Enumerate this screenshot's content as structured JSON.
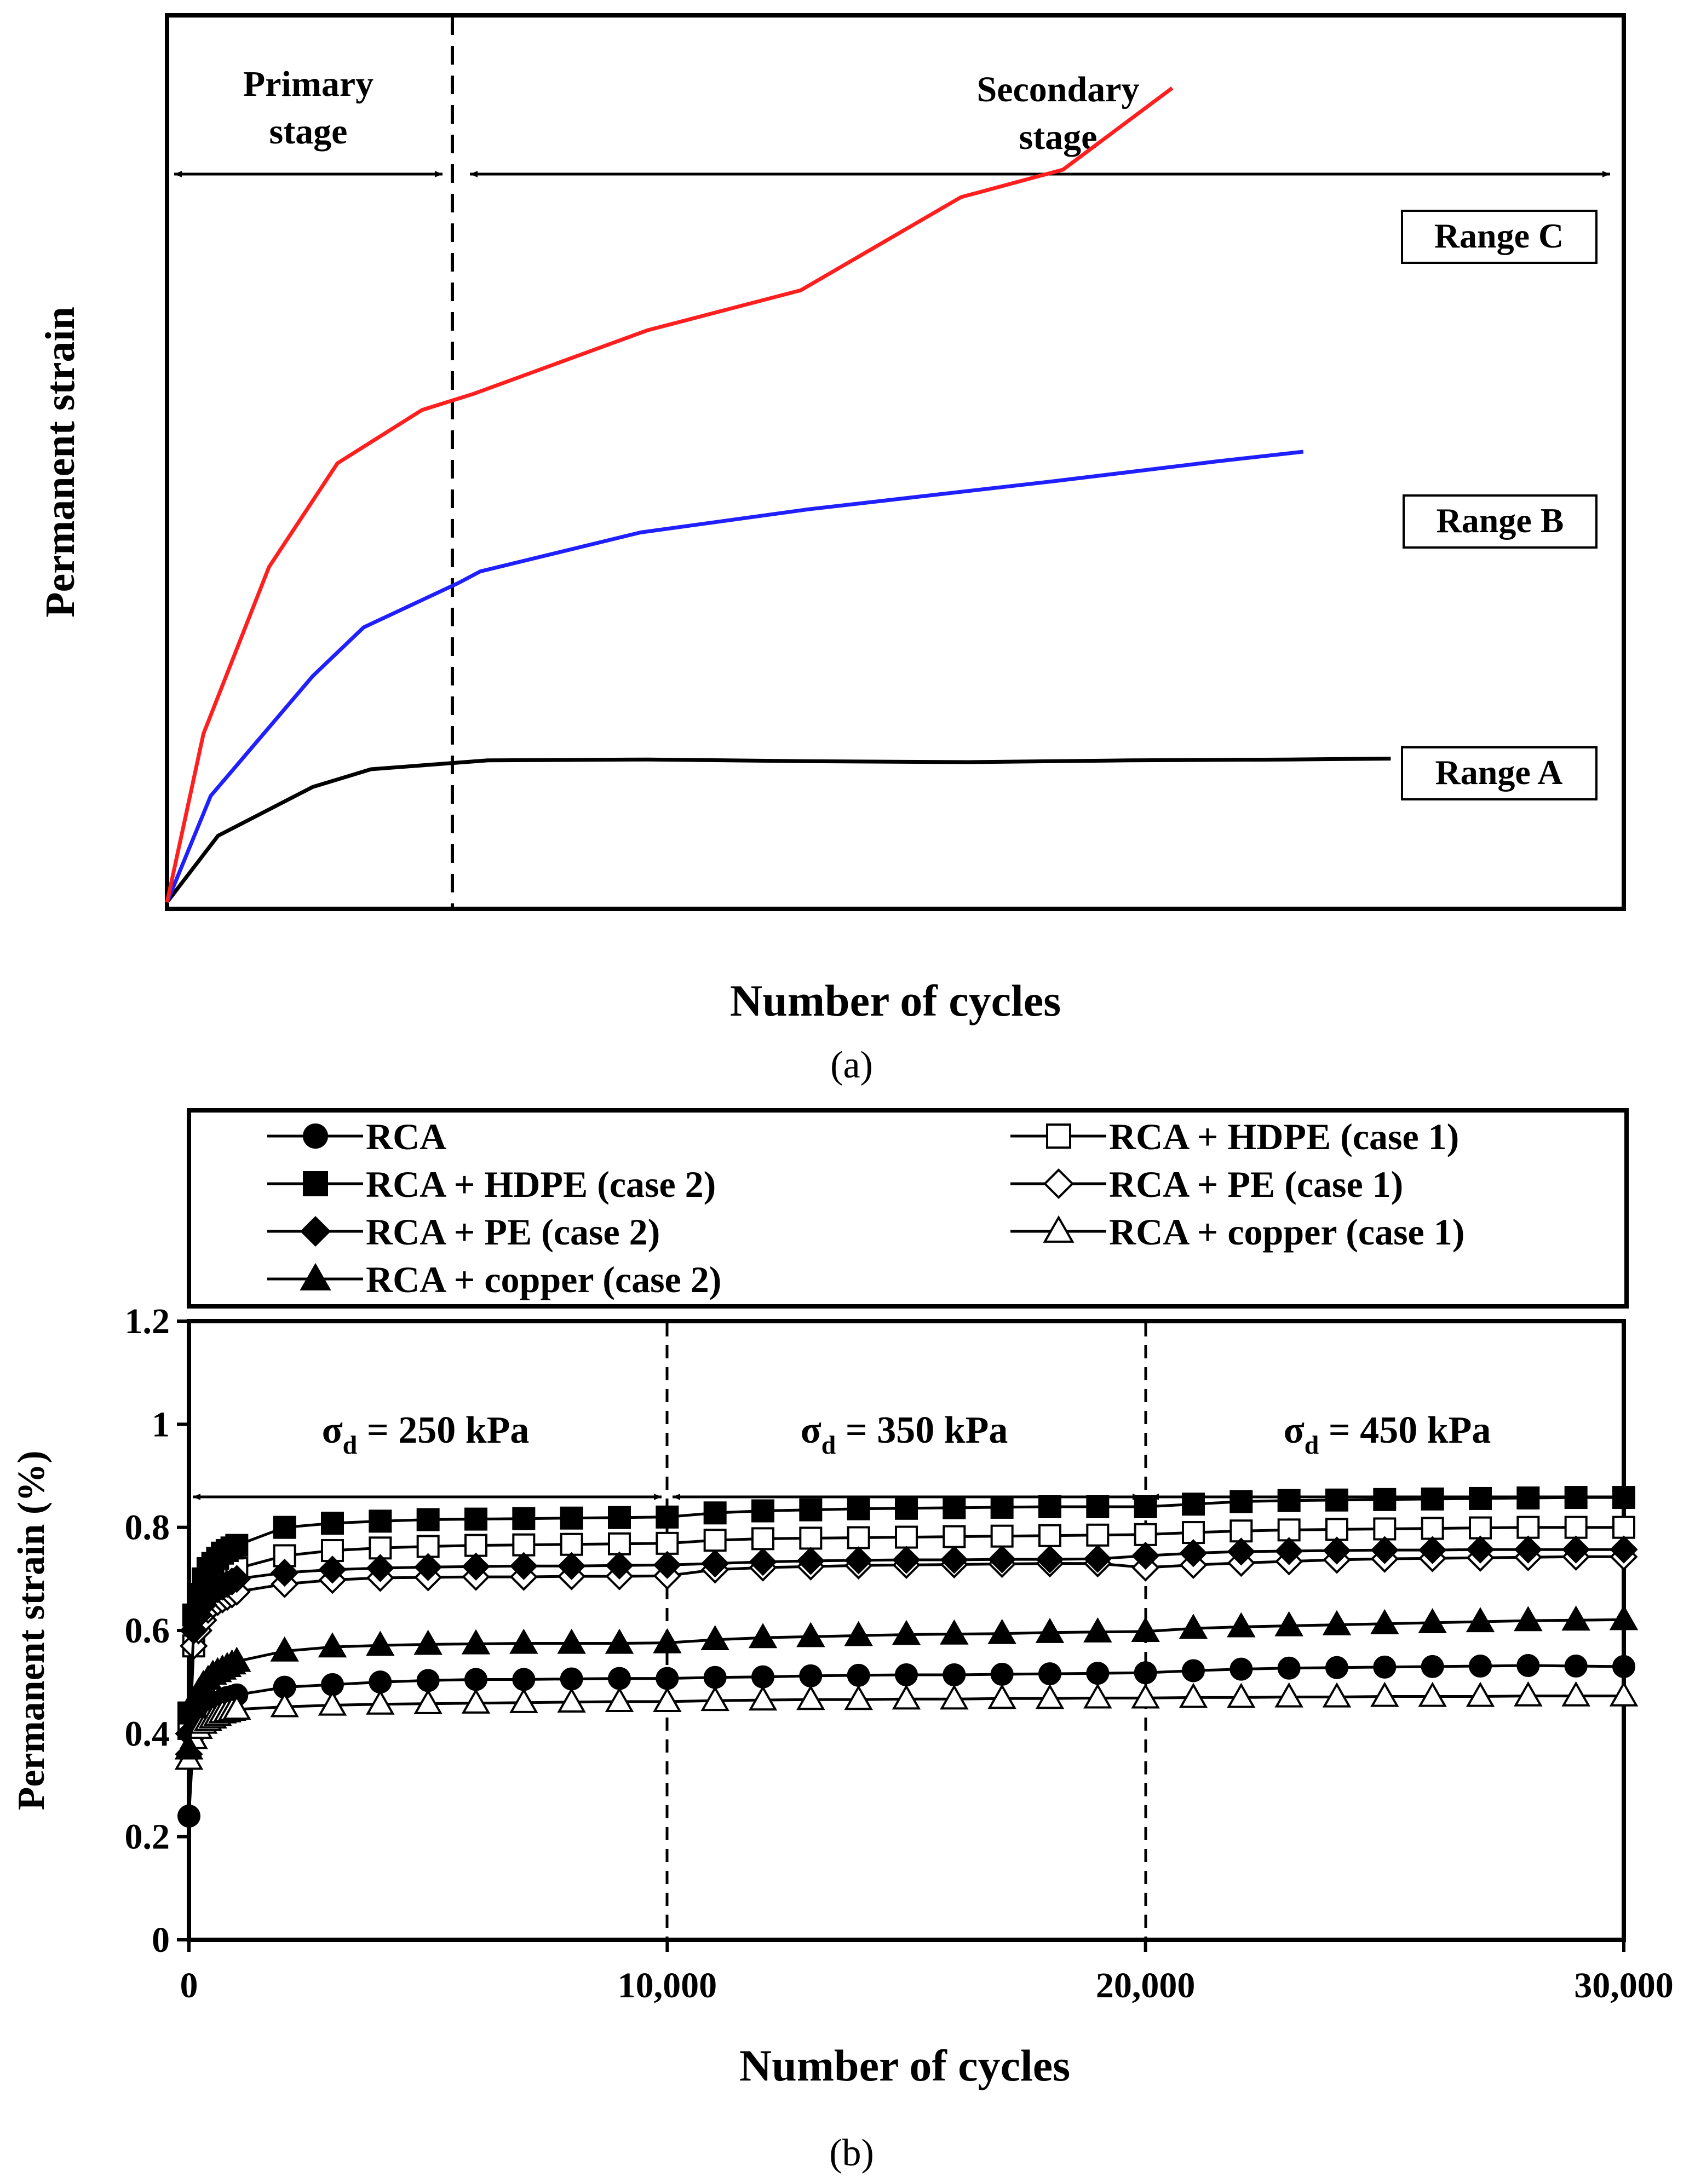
{
  "colors": {
    "ink": "#000000",
    "rangeA": "#000000",
    "rangeB": "#1f1fff",
    "rangeC": "#ff1f1f",
    "background": "#ffffff"
  },
  "chart_data": [
    {
      "type": "line",
      "panel_label": "(a)",
      "title": "",
      "xlabel": "Number of cycles",
      "ylabel": "Permanent strain",
      "units": "relative (0-1 of axis), schematic, no ticks",
      "xlim": [
        0,
        1
      ],
      "ylim": [
        0,
        1
      ],
      "stage_divider_x": 0.2,
      "stages": [
        {
          "label_line1": "Primary",
          "label_line2": "stage",
          "from": 0,
          "to": 0.2
        },
        {
          "label_line1": "Secondary",
          "label_line2": "stage",
          "from": 0.2,
          "to": 1
        }
      ],
      "series": [
        {
          "name": "Range A",
          "color_key": "rangeA",
          "x": [
            0,
            0.035,
            0.1,
            0.14,
            0.22,
            0.33,
            0.44,
            0.55,
            0.66,
            0.77,
            0.84
          ],
          "y": [
            0,
            0.075,
            0.13,
            0.15,
            0.16,
            0.161,
            0.159,
            0.158,
            0.16,
            0.161,
            0.162
          ]
        },
        {
          "name": "Range B",
          "color_key": "rangeB",
          "x": [
            0,
            0.03,
            0.1,
            0.135,
            0.2,
            0.215,
            0.325,
            0.44,
            0.61,
            0.72,
            0.78
          ],
          "y": [
            0,
            0.12,
            0.255,
            0.31,
            0.36,
            0.373,
            0.417,
            0.443,
            0.475,
            0.497,
            0.508
          ]
        },
        {
          "name": "Range C",
          "color_key": "rangeC",
          "x": [
            0,
            0.025,
            0.07,
            0.117,
            0.175,
            0.21,
            0.33,
            0.435,
            0.545,
            0.615,
            0.69
          ],
          "y": [
            0,
            0.19,
            0.378,
            0.495,
            0.555,
            0.573,
            0.645,
            0.69,
            0.795,
            0.826,
            0.918
          ]
        }
      ]
    },
    {
      "type": "line",
      "panel_label": "(b)",
      "title": "",
      "xlabel": "Number of cycles",
      "ylabel": "Permanent strain (%)",
      "xlim": [
        0,
        30000
      ],
      "ylim": [
        0,
        1.2
      ],
      "x_ticks": [
        0,
        10000,
        20000,
        30000
      ],
      "x_tick_labels": [
        "0",
        "10,000",
        "20,000",
        "30,000"
      ],
      "y_ticks": [
        0,
        0.2,
        0.4,
        0.6,
        0.8,
        1,
        1.2
      ],
      "y_tick_labels": [
        "0",
        "0.2",
        "0.4",
        "0.6",
        "0.8",
        "1",
        "1.2"
      ],
      "stress_stages": [
        {
          "sigma": "σ",
          "sub": "d",
          "text": " = 250 kPa",
          "from": 0,
          "to": 10000
        },
        {
          "sigma": "σ",
          "sub": "d",
          "text": " = 350 kPa",
          "from": 10000,
          "to": 20000
        },
        {
          "sigma": "σ",
          "sub": "d",
          "text": " = 450 kPa",
          "from": 20000,
          "to": 30000
        }
      ],
      "x": [
        0,
        100,
        200,
        300,
        400,
        500,
        600,
        700,
        800,
        900,
        1000,
        2000,
        3000,
        4000,
        5000,
        6000,
        7000,
        8000,
        9000,
        10000,
        11000,
        12000,
        13000,
        14000,
        15000,
        16000,
        17000,
        18000,
        19000,
        20000,
        21000,
        22000,
        23000,
        24000,
        25000,
        26000,
        27000,
        28000,
        29000,
        30000
      ],
      "series": [
        {
          "name": "RCA",
          "marker": "circle",
          "filled": true,
          "values": [
            0.24,
            0.4,
            0.43,
            0.44,
            0.45,
            0.455,
            0.46,
            0.465,
            0.47,
            0.472,
            0.475,
            0.49,
            0.495,
            0.5,
            0.503,
            0.505,
            0.505,
            0.506,
            0.507,
            0.507,
            0.509,
            0.51,
            0.512,
            0.513,
            0.514,
            0.514,
            0.515,
            0.516,
            0.517,
            0.518,
            0.522,
            0.525,
            0.527,
            0.528,
            0.529,
            0.53,
            0.531,
            0.532,
            0.531,
            0.53
          ]
        },
        {
          "name": "RCA + HDPE (case 1)",
          "marker": "square",
          "filled": false,
          "values": [
            0.41,
            0.57,
            0.62,
            0.65,
            0.67,
            0.68,
            0.69,
            0.7,
            0.71,
            0.715,
            0.72,
            0.745,
            0.755,
            0.76,
            0.763,
            0.765,
            0.766,
            0.767,
            0.768,
            0.769,
            0.775,
            0.778,
            0.779,
            0.78,
            0.781,
            0.782,
            0.783,
            0.784,
            0.785,
            0.786,
            0.79,
            0.793,
            0.795,
            0.796,
            0.797,
            0.798,
            0.799,
            0.8,
            0.8,
            0.8
          ]
        },
        {
          "name": "RCA + HDPE (case 2)",
          "marker": "square",
          "filled": true,
          "values": [
            0.44,
            0.63,
            0.67,
            0.7,
            0.72,
            0.73,
            0.74,
            0.75,
            0.755,
            0.76,
            0.765,
            0.8,
            0.808,
            0.812,
            0.815,
            0.816,
            0.817,
            0.818,
            0.819,
            0.82,
            0.828,
            0.832,
            0.834,
            0.836,
            0.837,
            0.838,
            0.839,
            0.84,
            0.84,
            0.84,
            0.845,
            0.85,
            0.852,
            0.853,
            0.854,
            0.855,
            0.856,
            0.857,
            0.858,
            0.858
          ]
        },
        {
          "name": "RCA + PE (case 1)",
          "marker": "diamond",
          "filled": false,
          "values": [
            0.36,
            0.57,
            0.6,
            0.62,
            0.64,
            0.65,
            0.655,
            0.66,
            0.665,
            0.67,
            0.675,
            0.69,
            0.698,
            0.702,
            0.703,
            0.704,
            0.704,
            0.705,
            0.705,
            0.706,
            0.718,
            0.722,
            0.724,
            0.726,
            0.727,
            0.728,
            0.729,
            0.73,
            0.73,
            0.722,
            0.727,
            0.731,
            0.734,
            0.737,
            0.739,
            0.74,
            0.741,
            0.742,
            0.743,
            0.743
          ]
        },
        {
          "name": "RCA + PE (case 2)",
          "marker": "diamond",
          "filled": true,
          "values": [
            0.4,
            0.6,
            0.63,
            0.65,
            0.665,
            0.675,
            0.68,
            0.685,
            0.69,
            0.695,
            0.7,
            0.712,
            0.718,
            0.721,
            0.723,
            0.724,
            0.725,
            0.725,
            0.726,
            0.727,
            0.73,
            0.733,
            0.735,
            0.736,
            0.737,
            0.737,
            0.738,
            0.738,
            0.739,
            0.745,
            0.75,
            0.753,
            0.754,
            0.755,
            0.756,
            0.756,
            0.757,
            0.757,
            0.757,
            0.757
          ]
        },
        {
          "name": "RCA + copper (case 1)",
          "marker": "triangle",
          "filled": false,
          "values": [
            0.35,
            0.39,
            0.41,
            0.42,
            0.425,
            0.43,
            0.435,
            0.44,
            0.442,
            0.445,
            0.447,
            0.452,
            0.455,
            0.457,
            0.458,
            0.459,
            0.46,
            0.461,
            0.462,
            0.462,
            0.464,
            0.465,
            0.466,
            0.466,
            0.467,
            0.467,
            0.468,
            0.468,
            0.469,
            0.469,
            0.47,
            0.47,
            0.471,
            0.471,
            0.472,
            0.472,
            0.472,
            0.473,
            0.473,
            0.473
          ]
        },
        {
          "name": "RCA + copper (case 2)",
          "marker": "triangle",
          "filled": true,
          "values": [
            0.37,
            0.45,
            0.48,
            0.495,
            0.505,
            0.515,
            0.52,
            0.525,
            0.53,
            0.535,
            0.54,
            0.56,
            0.568,
            0.571,
            0.573,
            0.574,
            0.575,
            0.575,
            0.575,
            0.576,
            0.582,
            0.586,
            0.588,
            0.59,
            0.592,
            0.593,
            0.594,
            0.596,
            0.597,
            0.598,
            0.604,
            0.607,
            0.609,
            0.611,
            0.613,
            0.615,
            0.617,
            0.619,
            0.62,
            0.621
          ]
        }
      ]
    }
  ],
  "labels": {
    "panel_a": "(a)",
    "panel_b": "(b)",
    "range_a": "Range A",
    "range_b": "Range B",
    "range_c": "Range C",
    "x_title_a": "Number of cycles",
    "y_title_a": "Permanent strain",
    "x_title_b": "Number of cycles",
    "y_title_b": "Permanent strain (%)"
  }
}
